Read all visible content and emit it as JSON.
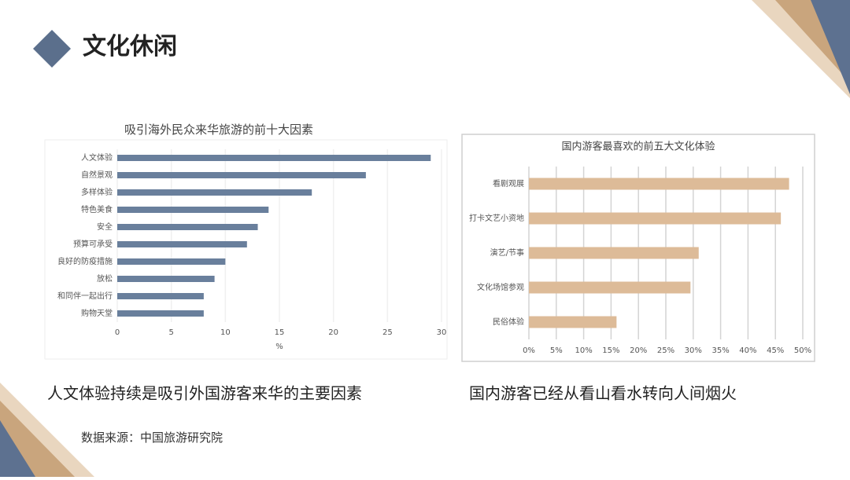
{
  "header": {
    "title": "文化休闲"
  },
  "chart_data": [
    {
      "type": "hbar",
      "title": "吸引海外民众来华旅游的前十大因素",
      "categories": [
        "人文体验",
        "自然景观",
        "多样体验",
        "特色美食",
        "安全",
        "预算可承受",
        "良好的防疫措施",
        "放松",
        "和同伴一起出行",
        "购物天堂"
      ],
      "values": [
        29,
        23,
        18,
        14,
        13,
        12,
        10,
        9,
        8,
        8
      ],
      "color": "#697f9c",
      "xlim": [
        0,
        30
      ],
      "xticks": [
        0,
        5,
        10,
        15,
        20,
        25,
        30
      ],
      "xlabel": "%",
      "grid": true
    },
    {
      "type": "hbar",
      "title": "国内游客最喜欢的前五大文化体验",
      "categories": [
        "看剧观展",
        "打卡文艺小资地",
        "演艺/节事",
        "文化场馆参观",
        "民俗体验"
      ],
      "values": [
        47.5,
        46,
        31,
        29.5,
        16
      ],
      "color": "#ddbb98",
      "xlim": [
        0,
        50
      ],
      "xticks": [
        {
          "value": 0,
          "label": "0%"
        },
        {
          "value": 5,
          "label": "5%"
        },
        {
          "value": 10,
          "label": "10%"
        },
        {
          "value": 15,
          "label": "15%"
        },
        {
          "value": 20,
          "label": "20%"
        },
        {
          "value": 25,
          "label": "25%"
        },
        {
          "value": 30,
          "label": "30%"
        },
        {
          "value": 35,
          "label": "35%"
        },
        {
          "value": 40,
          "label": "40%"
        },
        {
          "value": 45,
          "label": "45%"
        },
        {
          "value": 50,
          "label": "50%"
        }
      ],
      "grid": true
    }
  ],
  "captions": [
    "人文体验持续是吸引外国游客来华的主要因素",
    "国内游客已经从看山看水转向人间烟火"
  ],
  "source": "数据来源：中国旅游研究院"
}
